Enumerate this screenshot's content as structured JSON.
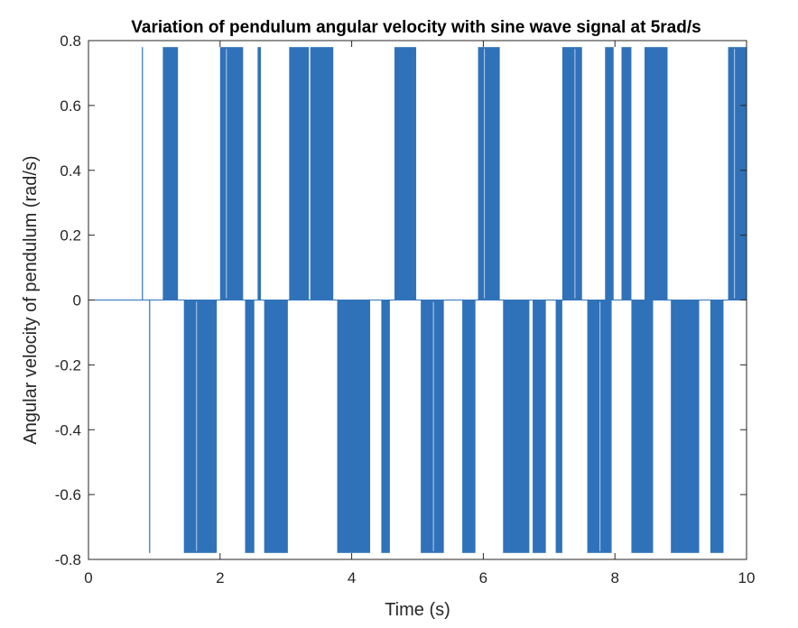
{
  "chart_data": {
    "type": "line",
    "title": "Variation of pendulum angular velocity with sine wave signal at 5rad/s",
    "xlabel": "Time (s)",
    "ylabel": "Angular velocity of pendulum (rad/s)",
    "xlim": [
      0,
      10
    ],
    "ylim": [
      -0.8,
      0.8
    ],
    "xticks": [
      0,
      2,
      4,
      6,
      8,
      10
    ],
    "xtick_labels": [
      "0",
      "2",
      "4",
      "6",
      "8",
      "10"
    ],
    "yticks": [
      -0.8,
      -0.6,
      -0.4,
      -0.2,
      0,
      0.2,
      0.4,
      0.6,
      0.8
    ],
    "ytick_labels": [
      "-0.8",
      "-0.6",
      "-0.4",
      "-0.2",
      "0",
      "0.2",
      "0.4",
      "0.6",
      "0.8"
    ],
    "grid": false,
    "line_color": "#3072b9",
    "series": [
      {
        "baseline": 0,
        "positive_level": 0.78,
        "negative_level": -0.78,
        "single_spikes": [
          {
            "t": 0.82,
            "level": 0.78
          },
          {
            "t": 0.93,
            "level": -0.78
          }
        ],
        "positive_bursts": [
          [
            1.13,
            1.36
          ],
          [
            2.0,
            2.35
          ],
          [
            2.57,
            2.62
          ],
          [
            3.05,
            3.35
          ],
          [
            3.37,
            3.72
          ],
          [
            4.65,
            4.98
          ],
          [
            5.92,
            6.25
          ],
          [
            7.2,
            7.5
          ],
          [
            7.85,
            7.98
          ],
          [
            8.1,
            8.25
          ],
          [
            8.45,
            8.8
          ],
          [
            9.72,
            10.0
          ]
        ],
        "negative_bursts": [
          [
            1.45,
            1.95
          ],
          [
            2.38,
            2.52
          ],
          [
            2.67,
            3.03
          ],
          [
            3.78,
            4.28
          ],
          [
            4.45,
            4.58
          ],
          [
            5.05,
            5.4
          ],
          [
            5.68,
            5.88
          ],
          [
            6.3,
            6.7
          ],
          [
            6.75,
            6.95
          ],
          [
            7.1,
            7.2
          ],
          [
            7.58,
            7.95
          ],
          [
            8.25,
            8.58
          ],
          [
            8.85,
            9.28
          ],
          [
            9.45,
            9.65
          ]
        ]
      }
    ]
  }
}
